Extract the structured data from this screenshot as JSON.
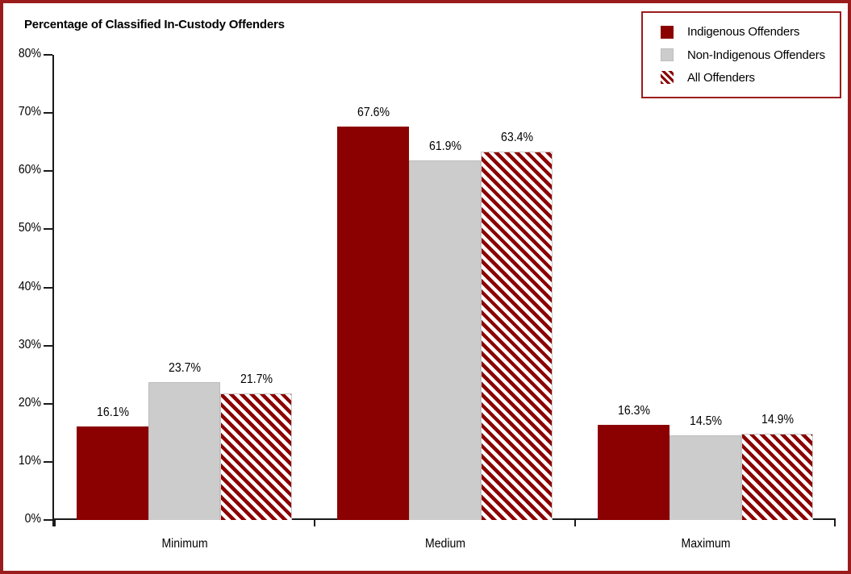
{
  "title": "Percentage of Classified In-Custody Offenders",
  "colors": {
    "maroon": "#8b0000",
    "gray": "#cccccc",
    "frame_border": "#9b1c1c",
    "axis": "#1a1a1a",
    "text": "#000000"
  },
  "legend": {
    "position": "top-right",
    "items": [
      {
        "label": "Indigenous Offenders",
        "swatch": "solid-red"
      },
      {
        "label": "Non-Indigenous Offenders",
        "swatch": "solid-gray"
      },
      {
        "label": "All Offenders",
        "swatch": "striped-red"
      }
    ]
  },
  "chart_data": {
    "type": "bar",
    "title": "Percentage of Classified In-Custody Offenders",
    "categories": [
      "Minimum",
      "Medium",
      "Maximum"
    ],
    "series": [
      {
        "name": "Indigenous Offenders",
        "style": "solid-red",
        "values": [
          16.1,
          67.6,
          16.3
        ],
        "labels": [
          "16.1%",
          "67.6%",
          "16.3%"
        ]
      },
      {
        "name": "Non-Indigenous Offenders",
        "style": "solid-gray",
        "values": [
          23.7,
          61.9,
          14.5
        ],
        "labels": [
          "23.7%",
          "61.9%",
          "14.5%"
        ]
      },
      {
        "name": "All Offenders",
        "style": "striped-red",
        "values": [
          21.7,
          63.4,
          14.9
        ],
        "labels": [
          "21.7%",
          "63.4%",
          "14.9%"
        ]
      }
    ],
    "xlabel": "",
    "ylabel": "",
    "ylim": [
      0,
      80
    ],
    "ytick_step": 10,
    "ytick_labels": [
      "0%",
      "10%",
      "20%",
      "30%",
      "40%",
      "50%",
      "60%",
      "70%",
      "80%"
    ],
    "grid": false,
    "legend_position": "top-right"
  }
}
